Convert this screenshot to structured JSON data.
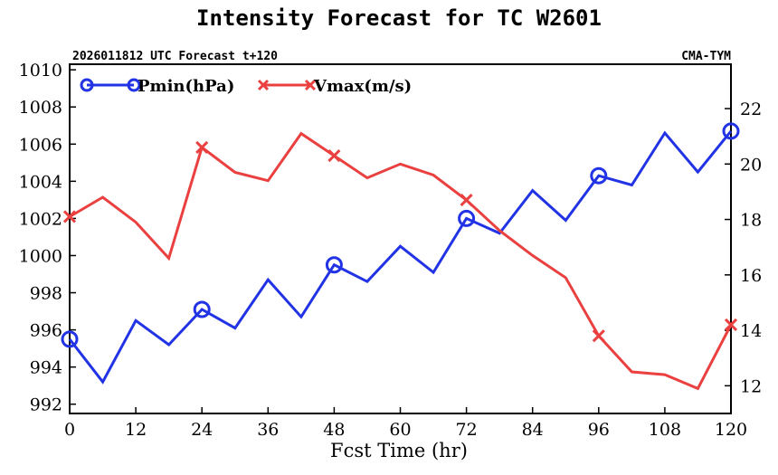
{
  "chart_data": {
    "type": "line",
    "title": "Intensity Forecast for TC W2601",
    "subtitle_left": "2026011812 UTC Forecast t+120",
    "subtitle_right": "CMA-TYM",
    "xlabel": "Fcst Time (hr)",
    "x": [
      0,
      6,
      12,
      18,
      24,
      30,
      36,
      42,
      48,
      54,
      60,
      66,
      72,
      78,
      84,
      90,
      96,
      102,
      108,
      114,
      120
    ],
    "xlim": [
      0,
      120
    ],
    "xticks": [
      0,
      12,
      24,
      36,
      48,
      60,
      72,
      84,
      96,
      108,
      120
    ],
    "xtick_labels": [
      "0",
      "12",
      "24",
      "36",
      "48",
      "60",
      "72",
      "84",
      "96",
      "108",
      "120"
    ],
    "ylim_left": [
      991.5,
      1010.3
    ],
    "yticks_left": [
      992,
      994,
      996,
      998,
      1000,
      1002,
      1004,
      1006,
      1008,
      1010
    ],
    "ytick_labels_left": [
      "992",
      "994",
      "996",
      "998",
      "1000",
      "1002",
      "1004",
      "1006",
      "1008",
      "1010"
    ],
    "ylim_right": [
      11.0,
      23.6
    ],
    "yticks_right": [
      12,
      14,
      16,
      18,
      20,
      22
    ],
    "ytick_labels_right": [
      "12",
      "14",
      "16",
      "18",
      "20",
      "22"
    ],
    "legend_position": "top-left",
    "series": [
      {
        "name": "Pmin(hPa)",
        "axis": "left",
        "color": "#2233e6",
        "marker": "circle",
        "marker_every": 4,
        "values": [
          995.5,
          993.2,
          996.5,
          995.2,
          997.1,
          996.1,
          998.7,
          996.7,
          999.5,
          998.6,
          1000.5,
          999.1,
          1002.0,
          1001.2,
          1003.5,
          1001.9,
          1004.3,
          1003.8,
          1006.6,
          1004.5,
          1006.7
        ]
      },
      {
        "name": "Vmax(m/s)",
        "axis": "right",
        "color": "#ea4040",
        "marker": "x",
        "marker_every": 4,
        "values": [
          18.1,
          18.8,
          17.9,
          16.6,
          20.6,
          19.7,
          19.4,
          21.1,
          20.3,
          19.5,
          20.0,
          19.6,
          18.7,
          17.6,
          16.7,
          15.9,
          13.8,
          12.5,
          12.4,
          11.9,
          14.2
        ]
      }
    ]
  }
}
